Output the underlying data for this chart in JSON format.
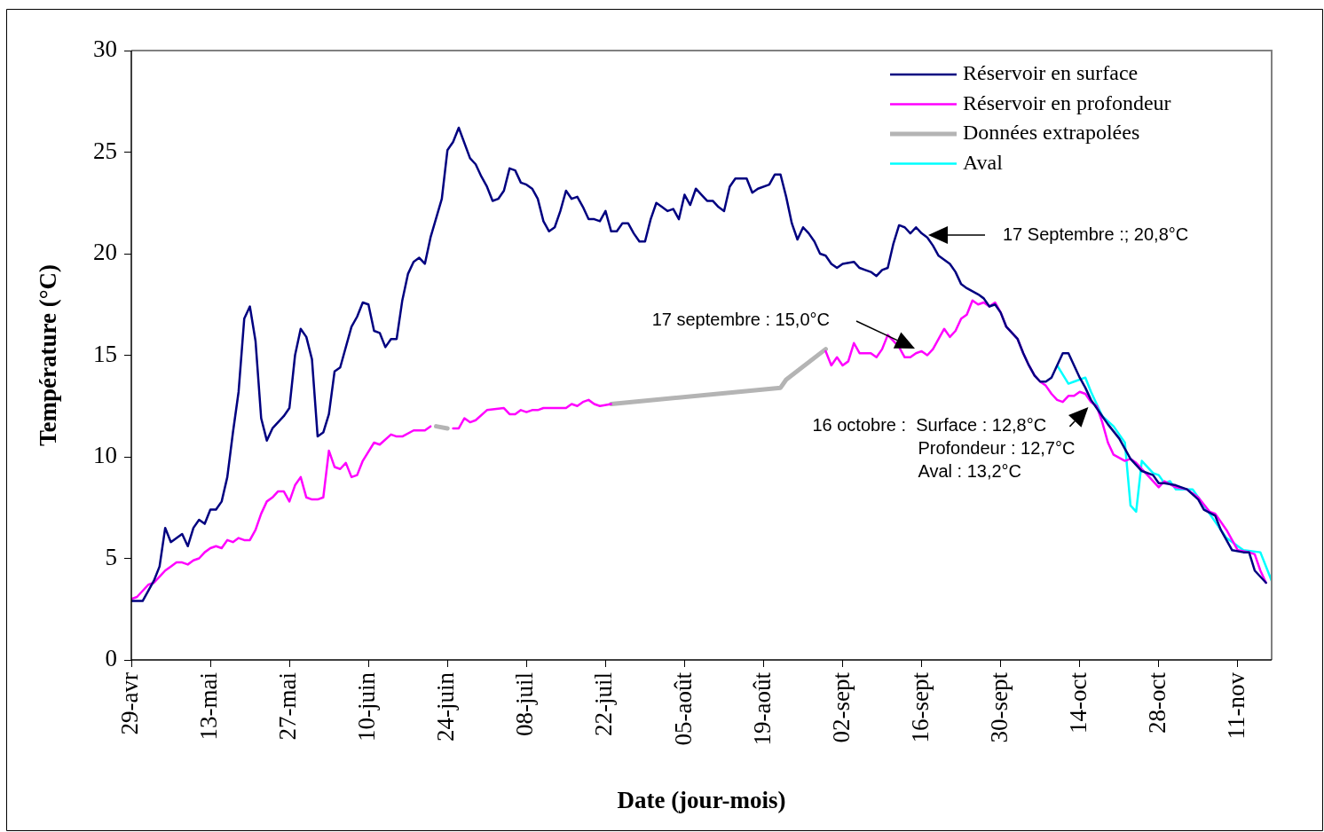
{
  "chart_data": {
    "type": "line",
    "xlabel": "Date (jour-mois)",
    "ylabel": "Température (°C)",
    "xlim": [
      "--04-29",
      "--11-17"
    ],
    "xticks": [
      {
        "value": "--04-29",
        "label": "29-avr"
      },
      {
        "value": "--05-13",
        "label": "13-mai"
      },
      {
        "value": "--05-27",
        "label": "27-mai"
      },
      {
        "value": "--06-10",
        "label": "10-juin"
      },
      {
        "value": "--06-24",
        "label": "24-juin"
      },
      {
        "value": "--07-08",
        "label": "08-juil"
      },
      {
        "value": "--07-22",
        "label": "22-juil"
      },
      {
        "value": "--08-05",
        "label": "05-août"
      },
      {
        "value": "--08-19",
        "label": "19-août"
      },
      {
        "value": "--09-02",
        "label": "02-sept"
      },
      {
        "value": "--09-16",
        "label": "16-sept"
      },
      {
        "value": "--09-30",
        "label": "30-sept"
      },
      {
        "value": "--10-14",
        "label": "14-oct"
      },
      {
        "value": "--10-28",
        "label": "28-oct"
      },
      {
        "value": "--11-11",
        "label": "11-nov"
      }
    ],
    "ylim": [
      0,
      30
    ],
    "yticks": [
      0,
      5,
      10,
      15,
      20,
      25,
      30
    ],
    "grid": false,
    "legend": "top right",
    "marker": "none",
    "line_style": "solid",
    "series": [
      {
        "name": "Réservoir en surface",
        "color": "#000080",
        "x": [
          "--04-29",
          "--05-01",
          "--05-03",
          "--05-04",
          "--05-05",
          "--05-06",
          "--05-08",
          "--05-09",
          "--05-10",
          "--05-11",
          "--05-12",
          "--05-13",
          "--05-14",
          "--05-15",
          "--05-16",
          "--05-17",
          "--05-18",
          "--05-19",
          "--05-20",
          "--05-21",
          "--05-22",
          "--05-23",
          "--05-24",
          "--05-26",
          "--05-27",
          "--05-28",
          "--05-29",
          "--05-30",
          "--05-31",
          "--06-01",
          "--06-02",
          "--06-03",
          "--06-04",
          "--06-05",
          "--06-07",
          "--06-08",
          "--06-09",
          "--06-10",
          "--06-11",
          "--06-12",
          "--06-13",
          "--06-14",
          "--06-15",
          "--06-16",
          "--06-17",
          "--06-18",
          "--06-19",
          "--06-20",
          "--06-21",
          "--06-23",
          "--06-24",
          "--06-25",
          "--06-26",
          "--06-28",
          "--06-29",
          "--06-30",
          "--07-01",
          "--07-02",
          "--07-03",
          "--07-04",
          "--07-05",
          "--07-06",
          "--07-07",
          "--07-08",
          "--07-09",
          "--07-10",
          "--07-11",
          "--07-12",
          "--07-13",
          "--07-14",
          "--07-15",
          "--07-16",
          "--07-17",
          "--07-18",
          "--07-19",
          "--07-20",
          "--07-21",
          "--07-22",
          "--07-23",
          "--07-24",
          "--07-25",
          "--07-26",
          "--07-27",
          "--07-28",
          "--07-29",
          "--07-30",
          "--07-31",
          "--08-01",
          "--08-02",
          "--08-03",
          "--08-04",
          "--08-05",
          "--08-06",
          "--08-07",
          "--08-08",
          "--08-09",
          "--08-10",
          "--08-11",
          "--08-12",
          "--08-13",
          "--08-14",
          "--08-16",
          "--08-17",
          "--08-18",
          "--08-20",
          "--08-21",
          "--08-22",
          "--08-23",
          "--08-24",
          "--08-25",
          "--08-26",
          "--08-27",
          "--08-28",
          "--08-29",
          "--08-30",
          "--08-31",
          "--09-01",
          "--09-02",
          "--09-04",
          "--09-05",
          "--09-06",
          "--09-07",
          "--09-08",
          "--09-09",
          "--09-10",
          "--09-11",
          "--09-12",
          "--09-13",
          "--09-14",
          "--09-15",
          "--09-16",
          "--09-17",
          "--09-18",
          "--09-19",
          "--09-21",
          "--09-22",
          "--09-23",
          "--09-24",
          "--09-26",
          "--09-27",
          "--09-28",
          "--09-29",
          "--09-30",
          "--10-01",
          "--10-03",
          "--10-04",
          "--10-05",
          "--10-06",
          "--10-07",
          "--10-08",
          "--10-09",
          "--10-10",
          "--10-11",
          "--10-12",
          "--10-13",
          "--10-14",
          "--10-15",
          "--10-16",
          "--10-17",
          "--10-18",
          "--10-19",
          "--10-21",
          "--10-22",
          "--10-23",
          "--10-25",
          "--10-27",
          "--10-28",
          "--10-29",
          "--10-31",
          "--11-02",
          "--11-04",
          "--11-05",
          "--11-07",
          "--11-08",
          "--11-10",
          "--11-12",
          "--11-13",
          "--11-14",
          "--11-16"
        ],
        "values": [
          2.9,
          2.9,
          3.9,
          4.6,
          6.5,
          5.8,
          6.2,
          5.6,
          6.5,
          6.9,
          6.7,
          7.4,
          7.4,
          7.8,
          9.0,
          11.2,
          13.2,
          16.8,
          17.4,
          15.7,
          11.9,
          10.8,
          11.4,
          12.0,
          12.4,
          15.0,
          16.3,
          15.9,
          14.8,
          11.0,
          11.2,
          12.1,
          14.2,
          14.4,
          16.4,
          16.9,
          17.6,
          17.5,
          16.2,
          16.1,
          15.4,
          15.8,
          15.8,
          17.7,
          19.0,
          19.6,
          19.8,
          19.5,
          20.8,
          22.7,
          25.1,
          25.5,
          26.2,
          24.7,
          24.4,
          23.8,
          23.3,
          22.6,
          22.7,
          23.1,
          24.2,
          24.1,
          23.5,
          23.4,
          23.2,
          22.7,
          21.6,
          21.1,
          21.3,
          22.1,
          23.1,
          22.7,
          22.8,
          22.3,
          21.7,
          21.7,
          21.6,
          22.1,
          21.1,
          21.1,
          21.5,
          21.5,
          21.0,
          20.6,
          20.6,
          21.7,
          22.5,
          22.3,
          22.1,
          22.2,
          21.7,
          22.9,
          22.4,
          23.2,
          22.9,
          22.6,
          22.6,
          22.3,
          22.1,
          23.3,
          23.7,
          23.7,
          23.0,
          23.2,
          23.4,
          23.9,
          23.9,
          22.8,
          21.5,
          20.7,
          21.3,
          21.0,
          20.6,
          20.0,
          19.9,
          19.5,
          19.3,
          19.5,
          19.6,
          19.3,
          19.2,
          19.1,
          18.9,
          19.2,
          19.3,
          20.5,
          21.4,
          21.3,
          21.0,
          21.3,
          21.0,
          20.8,
          20.4,
          19.9,
          19.5,
          19.1,
          18.5,
          18.3,
          18.0,
          17.8,
          17.4,
          17.5,
          17.1,
          16.4,
          15.8,
          15.1,
          14.5,
          14.0,
          13.7,
          13.7,
          13.9,
          14.5,
          15.1,
          15.1,
          14.5,
          13.9,
          13.4,
          12.8,
          12.4,
          12.0,
          11.6,
          10.9,
          10.4,
          9.9,
          9.3,
          9.1,
          8.7,
          8.7,
          8.6,
          8.4,
          7.9,
          7.4,
          7.1,
          6.4,
          5.4,
          5.3,
          5.3,
          4.4,
          3.8
        ]
      },
      {
        "name": "Réservoir en profondeur",
        "color": "#ff00ff",
        "x": [
          "--04-29",
          "--04-30",
          "--05-02",
          "--05-03",
          "--05-04",
          "--05-05",
          "--05-06",
          "--05-07",
          "--05-08",
          "--05-09",
          "--05-10",
          "--05-11",
          "--05-12",
          "--05-13",
          "--05-14",
          "--05-15",
          "--05-16",
          "--05-17",
          "--05-18",
          "--05-19",
          "--05-20",
          "--05-21",
          "--05-22",
          "--05-23",
          "--05-24",
          "--05-25",
          "--05-26",
          "--05-27",
          "--05-28",
          "--05-29",
          "--05-30",
          "--05-31",
          "--06-01",
          "--06-02",
          "--06-03",
          "--06-04",
          "--06-05",
          "--06-06",
          "--06-07",
          "--06-08",
          "--06-09",
          "--06-11",
          "--06-12",
          "--06-14",
          "--06-15",
          "--06-16",
          "--06-18",
          "--06-20",
          "--06-21",
          "--06-23",
          "--06-25",
          "--06-26",
          "--06-27",
          "--06-28",
          "--06-29",
          "--07-01",
          "--07-04",
          "--07-05",
          "--07-06",
          "--07-07",
          "--07-08",
          "--07-09",
          "--07-10",
          "--07-11",
          "--07-15",
          "--07-16",
          "--07-17",
          "--07-18",
          "--07-19",
          "--07-20",
          "--07-21",
          "--07-23",
          "--08-10",
          "--08-30",
          "--08-31",
          "--09-01",
          "--09-02",
          "--09-03",
          "--09-04",
          "--09-05",
          "--09-07",
          "--09-08",
          "--09-09",
          "--09-10",
          "--09-11",
          "--09-12",
          "--09-13",
          "--09-14",
          "--09-15",
          "--09-16",
          "--09-17",
          "--09-18",
          "--09-19",
          "--09-20",
          "--09-21",
          "--09-22",
          "--09-23",
          "--09-24",
          "--09-25",
          "--09-26",
          "--09-27",
          "--09-28",
          "--09-29",
          "--09-30",
          "--10-01",
          "--10-03",
          "--10-04",
          "--10-05",
          "--10-06",
          "--10-07",
          "--10-08",
          "--10-09",
          "--10-10",
          "--10-11",
          "--10-12",
          "--10-13",
          "--10-14",
          "--10-15",
          "--10-16",
          "--10-17",
          "--10-18",
          "--10-19",
          "--10-20",
          "--10-22",
          "--10-23",
          "--10-24",
          "--10-26",
          "--10-28",
          "--10-29",
          "--10-31",
          "--11-02",
          "--11-04",
          "--11-06",
          "--11-07",
          "--11-09",
          "--11-11",
          "--11-13",
          "--11-14",
          "--11-15",
          "--11-16"
        ],
        "values": [
          3.0,
          3.1,
          3.7,
          3.8,
          4.1,
          4.4,
          4.6,
          4.8,
          4.8,
          4.7,
          4.9,
          5.0,
          5.3,
          5.5,
          5.6,
          5.5,
          5.9,
          5.8,
          6.0,
          5.9,
          5.9,
          6.4,
          7.2,
          7.8,
          8.0,
          8.3,
          8.3,
          7.8,
          8.6,
          9.0,
          8.0,
          7.9,
          7.9,
          8.0,
          10.3,
          9.5,
          9.4,
          9.7,
          9.0,
          9.1,
          9.8,
          10.7,
          10.6,
          11.1,
          11.0,
          11.0,
          11.3,
          11.3,
          11.5,
          null,
          11.4,
          11.4,
          11.9,
          11.7,
          11.8,
          12.3,
          12.4,
          12.1,
          12.1,
          12.3,
          12.2,
          12.3,
          12.3,
          12.4,
          12.4,
          12.6,
          12.5,
          12.7,
          12.8,
          12.6,
          12.5,
          12.6,
          null,
          15.2,
          14.5,
          14.9,
          14.5,
          14.7,
          15.6,
          15.1,
          15.1,
          14.9,
          15.3,
          16.0,
          15.7,
          15.4,
          14.9,
          14.9,
          15.1,
          15.2,
          15.0,
          15.3,
          15.8,
          16.3,
          15.9,
          16.2,
          16.8,
          17.0,
          17.7,
          17.5,
          17.6,
          17.4,
          17.6,
          17.1,
          16.4,
          15.8,
          15.1,
          14.5,
          14.0,
          13.7,
          13.5,
          13.1,
          12.8,
          12.7,
          13.0,
          13.0,
          13.2,
          13.1,
          12.7,
          12.5,
          11.7,
          10.7,
          10.1,
          9.8,
          9.9,
          9.7,
          9.1,
          8.5,
          8.8,
          8.5,
          8.4,
          8.0,
          7.3,
          7.2,
          6.4,
          5.4,
          5.3,
          5.2,
          4.4,
          3.8
        ]
      },
      {
        "name": "Données extrapolées",
        "color": "#b4b4b4",
        "x": [
          "--06-22",
          "--06-24",
          "--07-10",
          "--07-23",
          "--08-22",
          "--08-23",
          "--08-30"
        ],
        "values": [
          11.5,
          11.4,
          null,
          12.6,
          13.4,
          13.8,
          15.3
        ]
      },
      {
        "name": "Aval",
        "color": "#00ffff",
        "x": [
          "--10-10",
          "--10-12",
          "--10-13",
          "--10-15",
          "--10-16",
          "--10-18",
          "--10-20",
          "--10-22",
          "--10-23",
          "--10-24",
          "--10-25",
          "--10-27",
          "--10-28",
          "--10-29",
          "--10-30",
          "--10-31",
          "--11-03",
          "--11-04",
          "--11-06",
          "--11-09",
          "--11-12",
          "--11-15",
          "--11-17"
        ],
        "values": [
          14.5,
          13.6,
          13.7,
          13.9,
          13.2,
          12.0,
          11.5,
          10.7,
          7.6,
          7.3,
          9.8,
          9.2,
          9.1,
          8.7,
          8.8,
          8.4,
          8.4,
          8.0,
          7.2,
          6.0,
          5.4,
          5.3,
          3.9
        ]
      }
    ],
    "annotations": [
      "17 Septembre :; 20,8°C",
      "17 septembre : 15,0°C",
      {
        "text": "16 octobre :  Surface : 12,8°C\nProfondeur : 12,7°C\nAval : 13,2°C",
        "x": "--10-16",
        "y": 12.8
      }
    ]
  }
}
